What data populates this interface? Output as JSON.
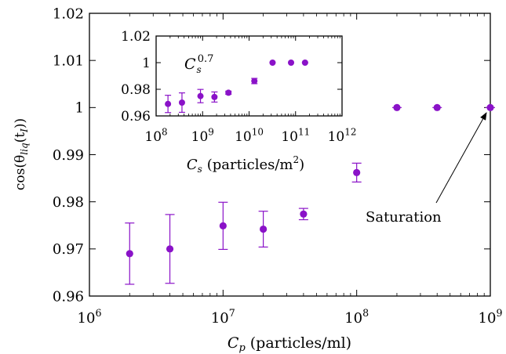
{
  "chart_data": [
    {
      "type": "scatter",
      "xlabel_var": "C",
      "xlabel_sub": "p",
      "xlabel_unit": "(particles/ml)",
      "ylabel_prefix": "cos(θ",
      "ylabel_sub": "liq",
      "ylabel_mid": "(t",
      "ylabel_sub2": "I",
      "ylabel_suffix": "))",
      "xscale": "log",
      "xlim": [
        1000000,
        1000000000
      ],
      "ylim": [
        0.96,
        1.02
      ],
      "xticks": [
        {
          "value": 1000000,
          "base": "10",
          "exp": "6"
        },
        {
          "value": 10000000,
          "base": "10",
          "exp": "7"
        },
        {
          "value": 100000000,
          "base": "10",
          "exp": "8"
        },
        {
          "value": 1000000000,
          "base": "10",
          "exp": "9"
        }
      ],
      "yticks": [
        {
          "value": 0.96,
          "label": "0.96"
        },
        {
          "value": 0.97,
          "label": "0.97"
        },
        {
          "value": 0.98,
          "label": "0.98"
        },
        {
          "value": 0.99,
          "label": "0.99"
        },
        {
          "value": 1.0,
          "label": "1"
        },
        {
          "value": 1.01,
          "label": "1.01"
        },
        {
          "value": 1.02,
          "label": "1.02"
        }
      ],
      "grid": false,
      "marker_color": "#8a12c8",
      "points": [
        {
          "x": 2000000,
          "y": 0.969,
          "err": 0.0065
        },
        {
          "x": 4000000,
          "y": 0.97,
          "err": 0.0073
        },
        {
          "x": 10000000,
          "y": 0.9749,
          "err": 0.005
        },
        {
          "x": 20000000,
          "y": 0.9742,
          "err": 0.0038
        },
        {
          "x": 40000000,
          "y": 0.9774,
          "err": 0.0012
        },
        {
          "x": 100000000,
          "y": 0.9862,
          "err": 0.002
        },
        {
          "x": 200000000,
          "y": 1.0,
          "err": 0
        },
        {
          "x": 400000000,
          "y": 1.0,
          "err": 0
        },
        {
          "x": 1000000000,
          "y": 1.0,
          "err": 0
        }
      ],
      "fit_line": {
        "a": 0.96939,
        "b": 2.034e-05,
        "exponent": 0.7,
        "x_min": 2000000,
        "x_max": 270000000
      },
      "annotation": {
        "text": "Saturation",
        "points_to": {
          "x": 1000000000,
          "y": 1.0
        }
      }
    },
    {
      "type": "scatter",
      "xlabel_var": "C",
      "xlabel_sub": "s",
      "xlabel_unit": "(particles/m",
      "xlabel_unit_sup": "2",
      "xlabel_unit_end": ")",
      "xscale": "log",
      "xlim": [
        100000000,
        1000000000000
      ],
      "ylim": [
        0.96,
        1.02
      ],
      "xticks": [
        {
          "value": 100000000,
          "base": "10",
          "exp": "8"
        },
        {
          "value": 1000000000,
          "base": "10",
          "exp": "9"
        },
        {
          "value": 10000000000,
          "base": "10",
          "exp": "10"
        },
        {
          "value": 100000000000,
          "base": "10",
          "exp": "11"
        },
        {
          "value": 1000000000000,
          "base": "10",
          "exp": "12"
        }
      ],
      "yticks": [
        {
          "value": 0.96,
          "label": "0.96"
        },
        {
          "value": 0.98,
          "label": "0.98"
        },
        {
          "value": 1.0,
          "label": "1"
        },
        {
          "value": 1.02,
          "label": "1.02"
        }
      ],
      "grid": false,
      "marker_color": "#8a12c8",
      "points": [
        {
          "x": 180000000,
          "y": 0.969,
          "err": 0.0065
        },
        {
          "x": 360000000,
          "y": 0.97,
          "err": 0.0073
        },
        {
          "x": 900000000,
          "y": 0.9749,
          "err": 0.005
        },
        {
          "x": 1800000000,
          "y": 0.9742,
          "err": 0.0038
        },
        {
          "x": 3600000000,
          "y": 0.9774,
          "err": 0.0012
        },
        {
          "x": 13000000000,
          "y": 0.9862,
          "err": 0.002
        },
        {
          "x": 32000000000,
          "y": 1.0,
          "err": 0
        },
        {
          "x": 80000000000,
          "y": 1.0,
          "err": 0
        },
        {
          "x": 160000000000,
          "y": 1.0,
          "err": 0
        }
      ],
      "fit_line": {
        "a": 0.96939,
        "b": 3.578e-06,
        "exponent": 0.7,
        "x_min": 180000000,
        "x_max": 26000000000
      },
      "annotation": {
        "var": "C",
        "sub": "s",
        "sup": "0.7"
      }
    }
  ]
}
